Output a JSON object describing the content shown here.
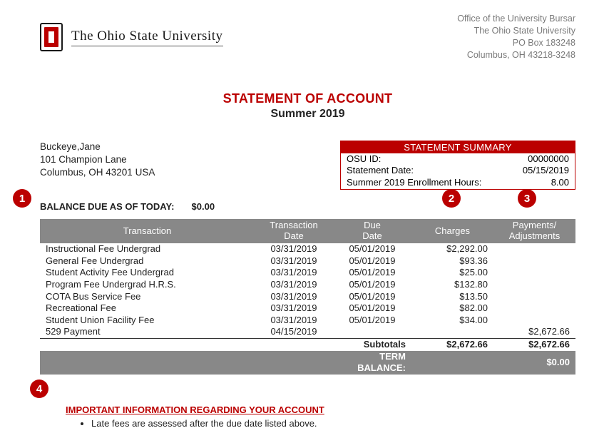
{
  "colors": {
    "scarlet": "#bb0000",
    "grayBar": "#888888",
    "textGray": "#7a7a7a",
    "text": "#222222",
    "white": "#ffffff"
  },
  "header": {
    "universityName": "The Ohio State University",
    "bursar": {
      "line1": "Office of the University Bursar",
      "line2": "The Ohio State University",
      "line3": "PO Box 183248",
      "line4": "Columbus, OH 43218-3248"
    }
  },
  "title": {
    "main": "STATEMENT OF ACCOUNT",
    "term": "Summer 2019"
  },
  "student": {
    "name": "Buckeye,Jane",
    "addr1": "101 Champion Lane",
    "addr2": "Columbus,  OH 43201 USA"
  },
  "summary": {
    "header": "STATEMENT SUMMARY",
    "rows": [
      {
        "label": "OSU ID:",
        "value": "00000000"
      },
      {
        "label": "Statement Date:",
        "value": "05/15/2019"
      },
      {
        "label": "Summer 2019 Enrollment Hours:",
        "value": "8.00"
      }
    ]
  },
  "balance": {
    "label": "BALANCE DUE AS OF TODAY:",
    "value": "$0.00"
  },
  "badges": {
    "b1": "1",
    "b2": "2",
    "b3": "3",
    "b4": "4"
  },
  "table": {
    "headers": {
      "transaction": "Transaction",
      "txDate": "Transaction Date",
      "dueDate": "Due Date",
      "charges": "Charges",
      "payments": "Payments/ Adjustments"
    },
    "rows": [
      {
        "txn": "Instructional Fee Undergrad",
        "txDate": "03/31/2019",
        "dueDate": "05/01/2019",
        "charge": "$2,292.00",
        "pay": ""
      },
      {
        "txn": "General Fee Undergrad",
        "txDate": "03/31/2019",
        "dueDate": "05/01/2019",
        "charge": "$93.36",
        "pay": ""
      },
      {
        "txn": "Student Activity Fee Undergrad",
        "txDate": "03/31/2019",
        "dueDate": "05/01/2019",
        "charge": "$25.00",
        "pay": ""
      },
      {
        "txn": "Program Fee Undergrad H.R.S.",
        "txDate": "03/31/2019",
        "dueDate": "05/01/2019",
        "charge": "$132.80",
        "pay": ""
      },
      {
        "txn": "COTA Bus Service Fee",
        "txDate": "03/31/2019",
        "dueDate": "05/01/2019",
        "charge": "$13.50",
        "pay": ""
      },
      {
        "txn": "Recreational Fee",
        "txDate": "03/31/2019",
        "dueDate": "05/01/2019",
        "charge": "$82.00",
        "pay": ""
      },
      {
        "txn": "Student Union Facility Fee",
        "txDate": "03/31/2019",
        "dueDate": "05/01/2019",
        "charge": "$34.00",
        "pay": ""
      },
      {
        "txn": "529 Payment",
        "txDate": "04/15/2019",
        "dueDate": "",
        "charge": "",
        "pay": "$2,672.66"
      }
    ],
    "subtotals": {
      "label": "Subtotals",
      "charges": "$2,672.66",
      "payments": "$2,672.66"
    },
    "termBalance": {
      "label": "TERM BALANCE:",
      "value": "$0.00"
    }
  },
  "important": {
    "title": "IMPORTANT INFORMATION REGARDING YOUR ACCOUNT",
    "items": [
      "Late fees are assessed after the due date listed above."
    ]
  }
}
